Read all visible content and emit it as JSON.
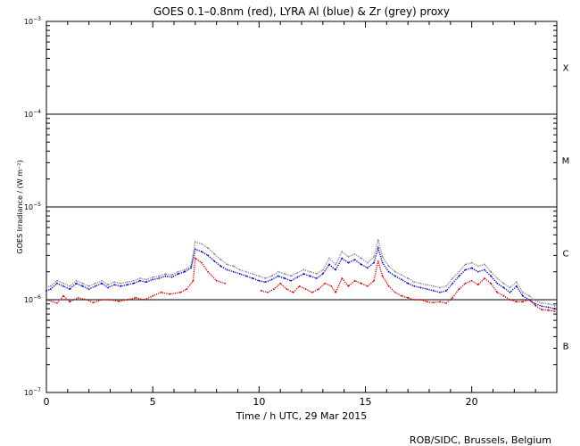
{
  "chart_data": {
    "type": "line",
    "title": "GOES 0.1–0.8nm (red), LYRA Al (blue) & Zr (grey) proxy",
    "xlabel": "Time / h UTC, 29 Mar 2015",
    "ylabel": "GOES Irradiance / (W m⁻²)",
    "footer": "ROB/SIDC, Brussels, Belgium",
    "xlim": [
      0,
      24
    ],
    "ylim": [
      1e-07,
      0.001
    ],
    "yscale": "log",
    "xticks": [
      0,
      5,
      10,
      15,
      20
    ],
    "xtick_labels": [
      "0",
      "5",
      "10",
      "15",
      "20"
    ],
    "yticks": [
      {
        "value": 1e-07,
        "base": "10",
        "exp": "−7"
      },
      {
        "value": 1e-06,
        "base": "10",
        "exp": "−6"
      },
      {
        "value": 1e-05,
        "base": "10",
        "exp": "−5"
      },
      {
        "value": 0.0001,
        "base": "10",
        "exp": "−4"
      },
      {
        "value": 0.001,
        "base": "10",
        "exp": "−3"
      }
    ],
    "class_lines": [
      1e-06,
      1e-05,
      0.0001
    ],
    "class_labels": [
      {
        "label": "B",
        "y": 3.2e-07
      },
      {
        "label": "C",
        "y": 3.2e-06
      },
      {
        "label": "M",
        "y": 3.2e-05
      },
      {
        "label": "X",
        "y": 0.00032
      }
    ],
    "series": [
      {
        "name": "GOES 0.1–0.8nm",
        "color": "#e00000",
        "x": [
          0,
          0.5,
          0.8,
          1.1,
          1.5,
          1.9,
          2.2,
          2.6,
          3.0,
          3.4,
          3.8,
          4.2,
          4.6,
          5.0,
          5.4,
          5.8,
          6.3,
          6.6,
          6.9,
          7.0,
          7.3,
          7.6,
          8.0,
          8.4
        ],
        "y": [
          1e-06,
          9.2e-07,
          1.1e-06,
          9.5e-07,
          1.05e-06,
          1e-06,
          9.3e-07,
          1e-06,
          1e-06,
          9.6e-07,
          1e-06,
          1.05e-06,
          1e-06,
          1.1e-06,
          1.2e-06,
          1.15e-06,
          1.2e-06,
          1.3e-06,
          1.6e-06,
          2.8e-06,
          2.5e-06,
          2e-06,
          1.6e-06,
          1.5e-06
        ]
      },
      {
        "name": "GOES 0.1–0.8nm (segment 2)",
        "color": "#e00000",
        "x": [
          10.1,
          10.4,
          10.7,
          11.0,
          11.3,
          11.6,
          11.9,
          12.2,
          12.5,
          12.8,
          13.1,
          13.4,
          13.6,
          13.9,
          14.2,
          14.5,
          14.8,
          15.1,
          15.4,
          15.6,
          15.8,
          16.1,
          16.4,
          16.7,
          17.0,
          17.3,
          17.6,
          17.9,
          18.2,
          18.5,
          18.8,
          19.1,
          19.4,
          19.7,
          20.0,
          20.3,
          20.6,
          20.9,
          21.2,
          21.5,
          21.8,
          22.1,
          22.4,
          22.7,
          23.0,
          23.3,
          23.6,
          23.9
        ],
        "y": [
          1.25e-06,
          1.2e-06,
          1.3e-06,
          1.5e-06,
          1.3e-06,
          1.2e-06,
          1.4e-06,
          1.3e-06,
          1.2e-06,
          1.3e-06,
          1.5e-06,
          1.4e-06,
          1.2e-06,
          1.7e-06,
          1.4e-06,
          1.6e-06,
          1.5e-06,
          1.4e-06,
          1.6e-06,
          2.6e-06,
          1.8e-06,
          1.4e-06,
          1.2e-06,
          1.1e-06,
          1.05e-06,
          1e-06,
          1e-06,
          9.5e-07,
          9.3e-07,
          9.5e-07,
          9.2e-07,
          1.05e-06,
          1.3e-06,
          1.5e-06,
          1.6e-06,
          1.45e-06,
          1.7e-06,
          1.5e-06,
          1.2e-06,
          1.1e-06,
          1e-06,
          9.5e-07,
          9.5e-07,
          1e-06,
          8.6e-07,
          7.8e-07,
          7.7e-07,
          7.5e-07
        ]
      },
      {
        "name": "LYRA Al proxy",
        "color": "#0000dd",
        "x": [
          0,
          0.2,
          0.5,
          0.8,
          1.1,
          1.4,
          1.7,
          2.0,
          2.3,
          2.6,
          2.9,
          3.2,
          3.5,
          3.8,
          4.1,
          4.4,
          4.7,
          5.0,
          5.3,
          5.6,
          5.9,
          6.2,
          6.5,
          6.8,
          7.0,
          7.3,
          7.6,
          7.9,
          8.2,
          8.5,
          8.8,
          9.1,
          9.4,
          9.7,
          10.0,
          10.3,
          10.6,
          10.9,
          11.2,
          11.5,
          11.8,
          12.1,
          12.4,
          12.7,
          13.0,
          13.3,
          13.6,
          13.9,
          14.2,
          14.5,
          14.8,
          15.1,
          15.4,
          15.6,
          15.8,
          16.1,
          16.4,
          16.7,
          17.0,
          17.3,
          17.6,
          17.9,
          18.2,
          18.5,
          18.8,
          19.1,
          19.4,
          19.7,
          20.0,
          20.3,
          20.6,
          20.9,
          21.2,
          21.5,
          21.8,
          22.1,
          22.4,
          22.7,
          23.0,
          23.3,
          23.6,
          23.9
        ],
        "y": [
          1.25e-06,
          1.3e-06,
          1.5e-06,
          1.4e-06,
          1.3e-06,
          1.5e-06,
          1.4e-06,
          1.3e-06,
          1.4e-06,
          1.5e-06,
          1.35e-06,
          1.45e-06,
          1.4e-06,
          1.45e-06,
          1.5e-06,
          1.6e-06,
          1.55e-06,
          1.65e-06,
          1.7e-06,
          1.8e-06,
          1.75e-06,
          1.9e-06,
          2e-06,
          2.2e-06,
          3.5e-06,
          3.3e-06,
          3e-06,
          2.6e-06,
          2.3e-06,
          2.1e-06,
          2e-06,
          1.9e-06,
          1.8e-06,
          1.7e-06,
          1.6e-06,
          1.55e-06,
          1.65e-06,
          1.8e-06,
          1.7e-06,
          1.6e-06,
          1.75e-06,
          1.9e-06,
          1.8e-06,
          1.7e-06,
          1.9e-06,
          2.4e-06,
          2.1e-06,
          2.8e-06,
          2.5e-06,
          2.7e-06,
          2.4e-06,
          2.2e-06,
          2.5e-06,
          3.6e-06,
          2.5e-06,
          2e-06,
          1.8e-06,
          1.65e-06,
          1.5e-06,
          1.4e-06,
          1.35e-06,
          1.3e-06,
          1.25e-06,
          1.2e-06,
          1.25e-06,
          1.5e-06,
          1.8e-06,
          2.1e-06,
          2.2e-06,
          2e-06,
          2.1e-06,
          1.8e-06,
          1.5e-06,
          1.35e-06,
          1.2e-06,
          1.4e-06,
          1.1e-06,
          1e-06,
          9e-07,
          8.5e-07,
          8.3e-07,
          8e-07
        ]
      },
      {
        "name": "LYRA Zr proxy",
        "color": "#888888",
        "x": [
          0,
          0.2,
          0.5,
          0.8,
          1.1,
          1.4,
          1.7,
          2.0,
          2.3,
          2.6,
          2.9,
          3.2,
          3.5,
          3.8,
          4.1,
          4.4,
          4.7,
          5.0,
          5.3,
          5.6,
          5.9,
          6.2,
          6.5,
          6.8,
          7.0,
          7.3,
          7.6,
          7.9,
          8.2,
          8.5,
          8.8,
          9.1,
          9.4,
          9.7,
          10.0,
          10.3,
          10.6,
          10.9,
          11.2,
          11.5,
          11.8,
          12.1,
          12.4,
          12.7,
          13.0,
          13.3,
          13.6,
          13.9,
          14.2,
          14.5,
          14.8,
          15.1,
          15.4,
          15.6,
          15.8,
          16.1,
          16.4,
          16.7,
          17.0,
          17.3,
          17.6,
          17.9,
          18.2,
          18.5,
          18.8,
          19.1,
          19.4,
          19.7,
          20.0,
          20.3,
          20.6,
          20.9,
          21.2,
          21.5,
          21.8,
          22.1,
          22.4,
          22.7,
          23.0,
          23.3,
          23.6,
          23.9
        ],
        "y": [
          1.35e-06,
          1.4e-06,
          1.6e-06,
          1.5e-06,
          1.4e-06,
          1.6e-06,
          1.5e-06,
          1.4e-06,
          1.5e-06,
          1.6e-06,
          1.45e-06,
          1.55e-06,
          1.5e-06,
          1.55e-06,
          1.6e-06,
          1.7e-06,
          1.65e-06,
          1.75e-06,
          1.8e-06,
          1.9e-06,
          1.85e-06,
          2e-06,
          2.1e-06,
          2.3e-06,
          4.2e-06,
          4e-06,
          3.6e-06,
          3.1e-06,
          2.7e-06,
          2.4e-06,
          2.3e-06,
          2.1e-06,
          2e-06,
          1.9e-06,
          1.8e-06,
          1.7e-06,
          1.8e-06,
          2e-06,
          1.9e-06,
          1.8e-06,
          1.95e-06,
          2.1e-06,
          2e-06,
          1.9e-06,
          2.1e-06,
          2.8e-06,
          2.4e-06,
          3.3e-06,
          2.9e-06,
          3.1e-06,
          2.8e-06,
          2.5e-06,
          2.9e-06,
          4.4e-06,
          2.9e-06,
          2.3e-06,
          2e-06,
          1.85e-06,
          1.7e-06,
          1.55e-06,
          1.5e-06,
          1.45e-06,
          1.4e-06,
          1.35e-06,
          1.4e-06,
          1.7e-06,
          2e-06,
          2.4e-06,
          2.5e-06,
          2.3e-06,
          2.4e-06,
          2e-06,
          1.7e-06,
          1.5e-06,
          1.35e-06,
          1.55e-06,
          1.2e-06,
          1.1e-06,
          9.8e-07,
          9.2e-07,
          9e-07,
          8.6e-07
        ]
      }
    ]
  }
}
